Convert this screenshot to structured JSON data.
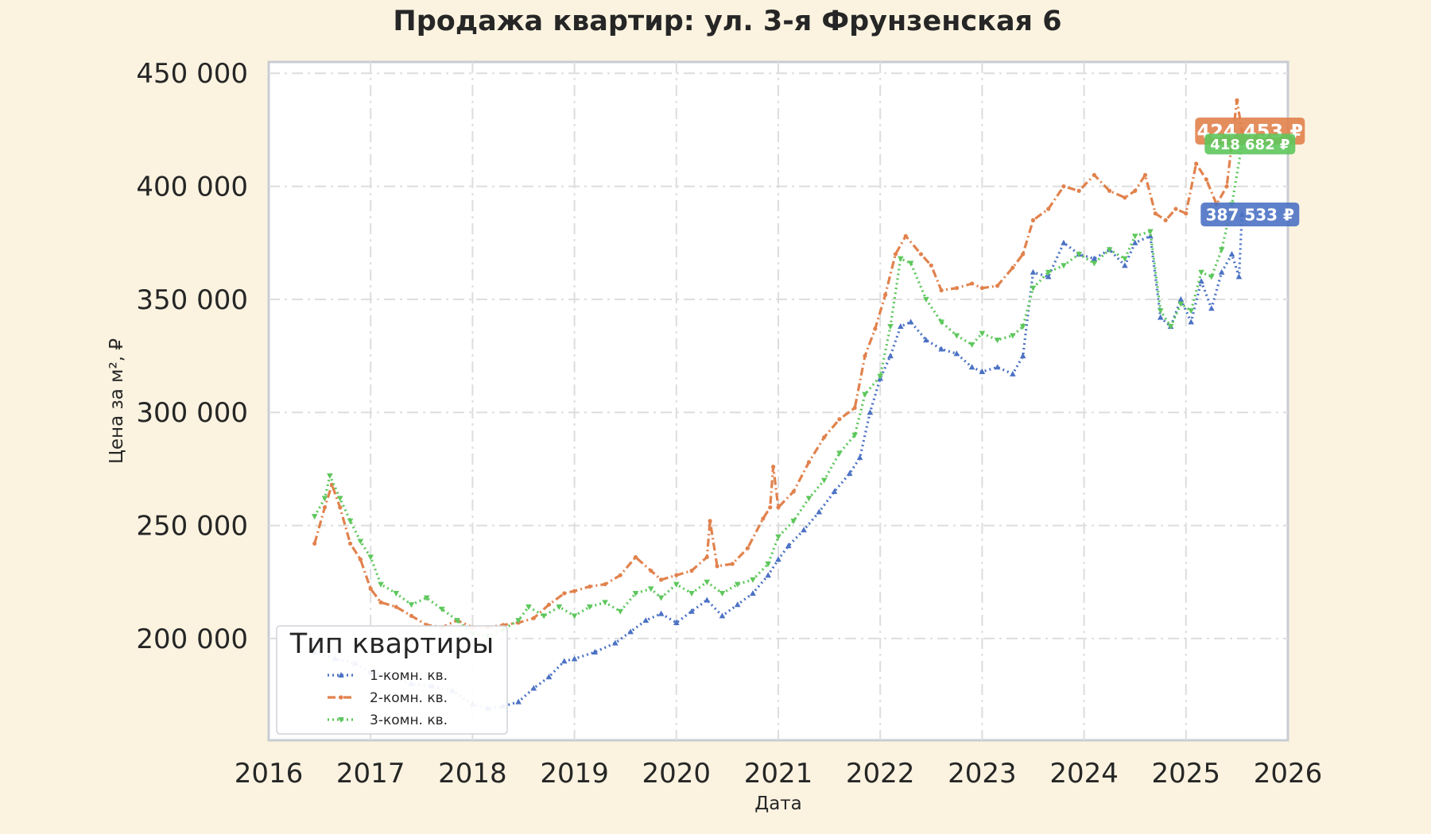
{
  "chart_data": {
    "type": "line",
    "title": "Продажа квартир: ул. 3-я Фрунзенская 6",
    "xlabel": "Дата",
    "ylabel": "Цена за м², ₽",
    "xlim": [
      2016.0,
      2026.0
    ],
    "ylim": [
      155000,
      455000
    ],
    "x_ticks": [
      "2016",
      "2017",
      "2018",
      "2019",
      "2020",
      "2021",
      "2022",
      "2023",
      "2024",
      "2025",
      "2026"
    ],
    "y_ticks": [
      "450 000",
      "400 000",
      "350 000",
      "300 000",
      "250 000",
      "200 000"
    ],
    "grid": true,
    "legend": {
      "title": "Тип квартиры",
      "placement": "lower-left"
    },
    "series": [
      {
        "name": "1-комн. кв.",
        "color": "#4c72c4",
        "line_style": "dotted",
        "marker": "triangle-up",
        "end_label": "387 533 ₽",
        "points": [
          [
            2016.45,
            194000
          ],
          [
            2016.65,
            191000
          ],
          [
            2016.85,
            189000
          ],
          [
            2017.0,
            185000
          ],
          [
            2017.2,
            183000
          ],
          [
            2017.4,
            180000
          ],
          [
            2017.6,
            179000
          ],
          [
            2017.8,
            177000
          ],
          [
            2018.0,
            171000
          ],
          [
            2018.15,
            169000
          ],
          [
            2018.3,
            170000
          ],
          [
            2018.45,
            172000
          ],
          [
            2018.6,
            178000
          ],
          [
            2018.75,
            183000
          ],
          [
            2018.9,
            190000
          ],
          [
            2019.0,
            191000
          ],
          [
            2019.2,
            194000
          ],
          [
            2019.4,
            198000
          ],
          [
            2019.55,
            203000
          ],
          [
            2019.7,
            208000
          ],
          [
            2019.85,
            211000
          ],
          [
            2020.0,
            207000
          ],
          [
            2020.15,
            212000
          ],
          [
            2020.3,
            217000
          ],
          [
            2020.45,
            210000
          ],
          [
            2020.6,
            215000
          ],
          [
            2020.75,
            220000
          ],
          [
            2020.9,
            228000
          ],
          [
            2021.0,
            235000
          ],
          [
            2021.1,
            241000
          ],
          [
            2021.25,
            248000
          ],
          [
            2021.4,
            256000
          ],
          [
            2021.55,
            265000
          ],
          [
            2021.7,
            273000
          ],
          [
            2021.8,
            280000
          ],
          [
            2021.9,
            300000
          ],
          [
            2022.0,
            315000
          ],
          [
            2022.1,
            325000
          ],
          [
            2022.2,
            338000
          ],
          [
            2022.3,
            340000
          ],
          [
            2022.45,
            332000
          ],
          [
            2022.6,
            328000
          ],
          [
            2022.75,
            326000
          ],
          [
            2022.9,
            320000
          ],
          [
            2023.0,
            318000
          ],
          [
            2023.15,
            320000
          ],
          [
            2023.3,
            317000
          ],
          [
            2023.4,
            325000
          ],
          [
            2023.5,
            362000
          ],
          [
            2023.65,
            360000
          ],
          [
            2023.8,
            375000
          ],
          [
            2023.95,
            370000
          ],
          [
            2024.1,
            368000
          ],
          [
            2024.25,
            372000
          ],
          [
            2024.4,
            365000
          ],
          [
            2024.5,
            375000
          ],
          [
            2024.65,
            378000
          ],
          [
            2024.75,
            342000
          ],
          [
            2024.85,
            338000
          ],
          [
            2024.95,
            350000
          ],
          [
            2025.05,
            340000
          ],
          [
            2025.15,
            358000
          ],
          [
            2025.25,
            346000
          ],
          [
            2025.35,
            362000
          ],
          [
            2025.45,
            370000
          ],
          [
            2025.52,
            360000
          ],
          [
            2025.55,
            387533
          ]
        ]
      },
      {
        "name": "2-комн. кв.",
        "color": "#e1824d",
        "line_style": "dashdot",
        "marker": "dot",
        "end_label": "424 453 ₽",
        "points": [
          [
            2016.45,
            242000
          ],
          [
            2016.55,
            258000
          ],
          [
            2016.62,
            268000
          ],
          [
            2016.7,
            258000
          ],
          [
            2016.8,
            242000
          ],
          [
            2016.9,
            235000
          ],
          [
            2017.0,
            222000
          ],
          [
            2017.1,
            216000
          ],
          [
            2017.25,
            214000
          ],
          [
            2017.4,
            210000
          ],
          [
            2017.55,
            206000
          ],
          [
            2017.7,
            205000
          ],
          [
            2017.85,
            208000
          ],
          [
            2018.0,
            205000
          ],
          [
            2018.15,
            205000
          ],
          [
            2018.3,
            206000
          ],
          [
            2018.45,
            207000
          ],
          [
            2018.6,
            209000
          ],
          [
            2018.75,
            215000
          ],
          [
            2018.9,
            220000
          ],
          [
            2019.0,
            221000
          ],
          [
            2019.15,
            223000
          ],
          [
            2019.3,
            224000
          ],
          [
            2019.45,
            228000
          ],
          [
            2019.6,
            236000
          ],
          [
            2019.75,
            230000
          ],
          [
            2019.85,
            226000
          ],
          [
            2020.0,
            228000
          ],
          [
            2020.15,
            230000
          ],
          [
            2020.3,
            236000
          ],
          [
            2020.33,
            252000
          ],
          [
            2020.4,
            232000
          ],
          [
            2020.55,
            233000
          ],
          [
            2020.7,
            240000
          ],
          [
            2020.85,
            253000
          ],
          [
            2020.92,
            258000
          ],
          [
            2020.95,
            276000
          ],
          [
            2021.0,
            258000
          ],
          [
            2021.15,
            265000
          ],
          [
            2021.3,
            278000
          ],
          [
            2021.45,
            289000
          ],
          [
            2021.6,
            297000
          ],
          [
            2021.75,
            302000
          ],
          [
            2021.85,
            325000
          ],
          [
            2021.95,
            337000
          ],
          [
            2022.05,
            352000
          ],
          [
            2022.15,
            370000
          ],
          [
            2022.25,
            378000
          ],
          [
            2022.4,
            370000
          ],
          [
            2022.5,
            365000
          ],
          [
            2022.6,
            354000
          ],
          [
            2022.75,
            355000
          ],
          [
            2022.9,
            357000
          ],
          [
            2023.0,
            355000
          ],
          [
            2023.15,
            356000
          ],
          [
            2023.3,
            364000
          ],
          [
            2023.4,
            370000
          ],
          [
            2023.5,
            385000
          ],
          [
            2023.65,
            390000
          ],
          [
            2023.8,
            400000
          ],
          [
            2023.95,
            398000
          ],
          [
            2024.1,
            405000
          ],
          [
            2024.25,
            398000
          ],
          [
            2024.4,
            395000
          ],
          [
            2024.5,
            398000
          ],
          [
            2024.6,
            405000
          ],
          [
            2024.7,
            388000
          ],
          [
            2024.8,
            385000
          ],
          [
            2024.9,
            390000
          ],
          [
            2025.0,
            388000
          ],
          [
            2025.1,
            410000
          ],
          [
            2025.2,
            403000
          ],
          [
            2025.3,
            392000
          ],
          [
            2025.4,
            400000
          ],
          [
            2025.5,
            438000
          ],
          [
            2025.55,
            424453
          ]
        ]
      },
      {
        "name": "3-комн. кв.",
        "color": "#5ec75c",
        "line_style": "dotted",
        "marker": "triangle-down",
        "end_label": "418 682 ₽",
        "points": [
          [
            2016.45,
            254000
          ],
          [
            2016.55,
            262000
          ],
          [
            2016.6,
            272000
          ],
          [
            2016.7,
            262000
          ],
          [
            2016.8,
            252000
          ],
          [
            2016.9,
            243000
          ],
          [
            2017.0,
            236000
          ],
          [
            2017.1,
            224000
          ],
          [
            2017.25,
            220000
          ],
          [
            2017.4,
            215000
          ],
          [
            2017.55,
            218000
          ],
          [
            2017.7,
            213000
          ],
          [
            2017.85,
            208000
          ],
          [
            2018.0,
            202000
          ],
          [
            2018.15,
            201000
          ],
          [
            2018.3,
            204000
          ],
          [
            2018.45,
            208000
          ],
          [
            2018.55,
            214000
          ],
          [
            2018.7,
            210000
          ],
          [
            2018.85,
            214000
          ],
          [
            2019.0,
            210000
          ],
          [
            2019.15,
            214000
          ],
          [
            2019.3,
            216000
          ],
          [
            2019.45,
            212000
          ],
          [
            2019.6,
            220000
          ],
          [
            2019.75,
            222000
          ],
          [
            2019.85,
            218000
          ],
          [
            2020.0,
            224000
          ],
          [
            2020.15,
            220000
          ],
          [
            2020.3,
            225000
          ],
          [
            2020.45,
            220000
          ],
          [
            2020.6,
            224000
          ],
          [
            2020.75,
            226000
          ],
          [
            2020.9,
            233000
          ],
          [
            2021.0,
            245000
          ],
          [
            2021.15,
            252000
          ],
          [
            2021.3,
            262000
          ],
          [
            2021.45,
            270000
          ],
          [
            2021.6,
            282000
          ],
          [
            2021.75,
            290000
          ],
          [
            2021.85,
            308000
          ],
          [
            2022.0,
            316000
          ],
          [
            2022.1,
            338000
          ],
          [
            2022.2,
            368000
          ],
          [
            2022.3,
            366000
          ],
          [
            2022.45,
            350000
          ],
          [
            2022.6,
            340000
          ],
          [
            2022.75,
            334000
          ],
          [
            2022.9,
            330000
          ],
          [
            2023.0,
            335000
          ],
          [
            2023.15,
            332000
          ],
          [
            2023.3,
            334000
          ],
          [
            2023.4,
            338000
          ],
          [
            2023.5,
            355000
          ],
          [
            2023.65,
            362000
          ],
          [
            2023.8,
            365000
          ],
          [
            2023.95,
            370000
          ],
          [
            2024.1,
            366000
          ],
          [
            2024.25,
            372000
          ],
          [
            2024.4,
            368000
          ],
          [
            2024.5,
            378000
          ],
          [
            2024.65,
            380000
          ],
          [
            2024.75,
            345000
          ],
          [
            2024.85,
            338000
          ],
          [
            2024.95,
            348000
          ],
          [
            2025.05,
            345000
          ],
          [
            2025.15,
            362000
          ],
          [
            2025.25,
            360000
          ],
          [
            2025.35,
            372000
          ],
          [
            2025.45,
            392000
          ],
          [
            2025.55,
            418682
          ]
        ]
      }
    ]
  }
}
